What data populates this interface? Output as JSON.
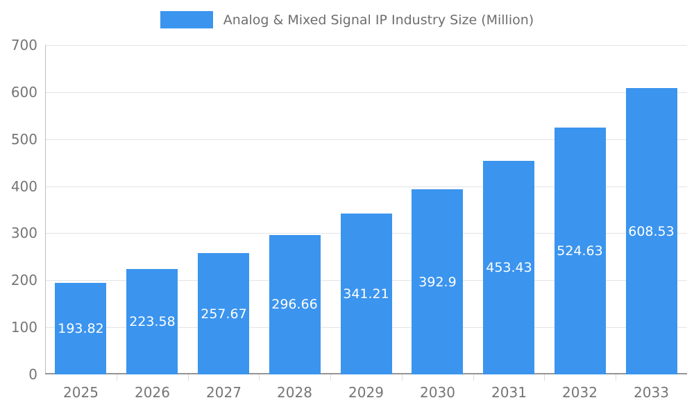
{
  "chart_data": {
    "type": "bar",
    "title": "Analog & Mixed Signal IP Industry Size (Million)",
    "categories": [
      "2025",
      "2026",
      "2027",
      "2028",
      "2029",
      "2030",
      "2031",
      "2032",
      "2033"
    ],
    "values": [
      193.82,
      223.58,
      257.67,
      296.66,
      341.21,
      392.9,
      453.43,
      524.63,
      608.53
    ],
    "value_labels": [
      "193.82",
      "223.58",
      "257.67",
      "296.66",
      "341.21",
      "392.9",
      "453.43",
      "524.63",
      "608.53"
    ],
    "xlabel": "",
    "ylabel": "",
    "ylim": [
      0,
      700
    ],
    "yticks": [
      0,
      100,
      200,
      300,
      400,
      500,
      600,
      700
    ],
    "grid": true,
    "legend_position": "top",
    "colors": {
      "bar": "#3b94ee",
      "bar_label": "#ffffff",
      "axis_text": "#757575",
      "title_text": "#6e6e6e",
      "gridline": "#e3e3e3",
      "axis_line": "#949494",
      "background": "#ffffff"
    }
  }
}
